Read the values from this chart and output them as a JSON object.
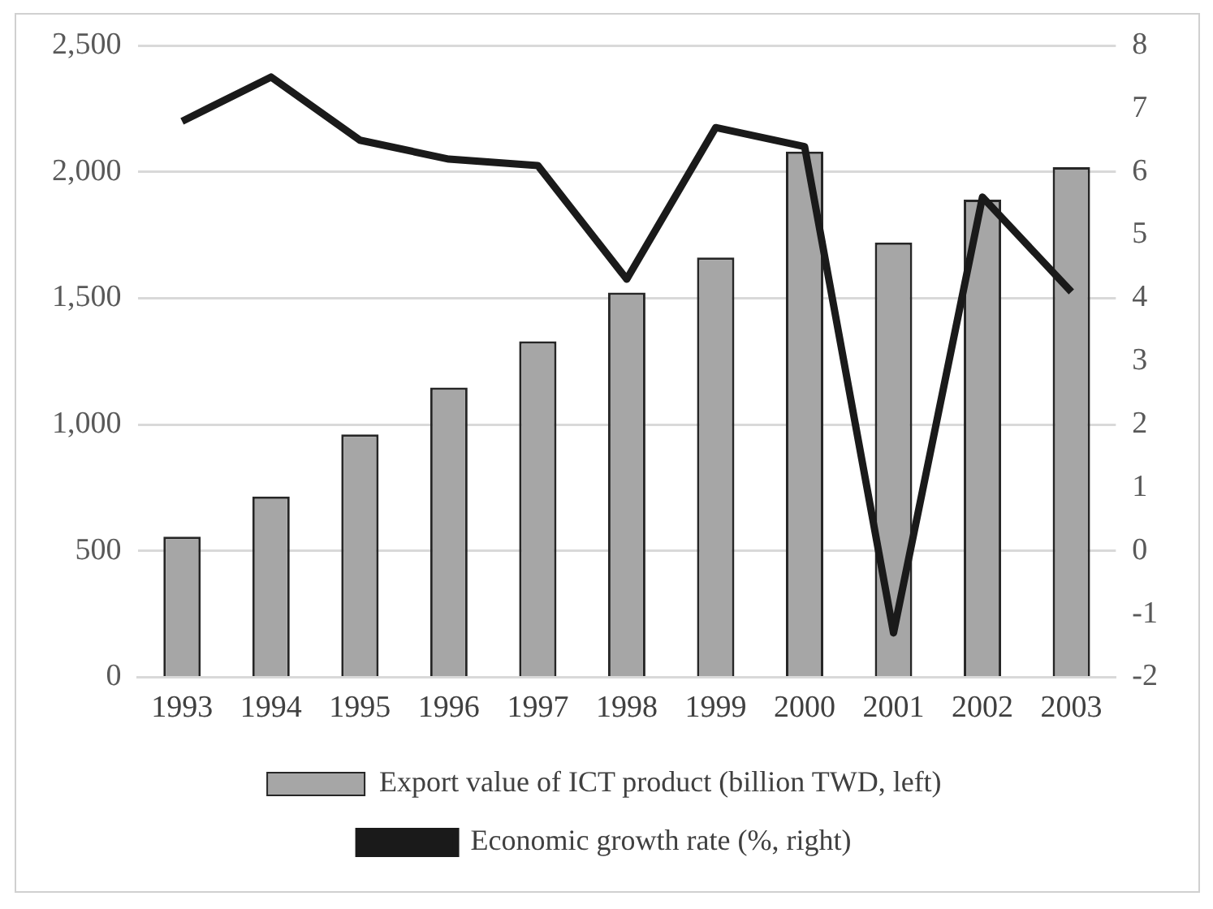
{
  "chart_data": {
    "type": "bar",
    "categories": [
      "1993",
      "1994",
      "1995",
      "1996",
      "1997",
      "1998",
      "1999",
      "2000",
      "2001",
      "2002",
      "2003"
    ],
    "series": [
      {
        "name": "Export value of ICT product (billion TWD, left)",
        "color": "#a6a6a6",
        "values": [
          556,
          715,
          961,
          1146,
          1329,
          1522,
          1661,
          2080,
          1720,
          1890,
          2018
        ]
      },
      {
        "name": "Economic growth rate (%, right)",
        "type": "line",
        "axis": "y2",
        "color": "#1a1a1a",
        "marker": "none",
        "values": [
          6.8,
          7.5,
          6.5,
          6.2,
          6.1,
          4.3,
          6.7,
          6.4,
          -1.3,
          5.6,
          4.1
        ]
      }
    ],
    "ylim": [
      0,
      2500
    ],
    "yticks": [
      {
        "value": 0,
        "label": "0"
      },
      {
        "value": 500,
        "label": "500"
      },
      {
        "value": 1000,
        "label": "1,000"
      },
      {
        "value": 1500,
        "label": "1,500"
      },
      {
        "value": 2000,
        "label": "2,000"
      },
      {
        "value": 2500,
        "label": "2,500"
      }
    ],
    "y2lim": [
      -2,
      8
    ],
    "y2ticks": [
      -2,
      -1,
      0,
      1,
      2,
      3,
      4,
      5,
      6,
      7,
      8
    ],
    "grid": "y",
    "legend": "bottom"
  }
}
